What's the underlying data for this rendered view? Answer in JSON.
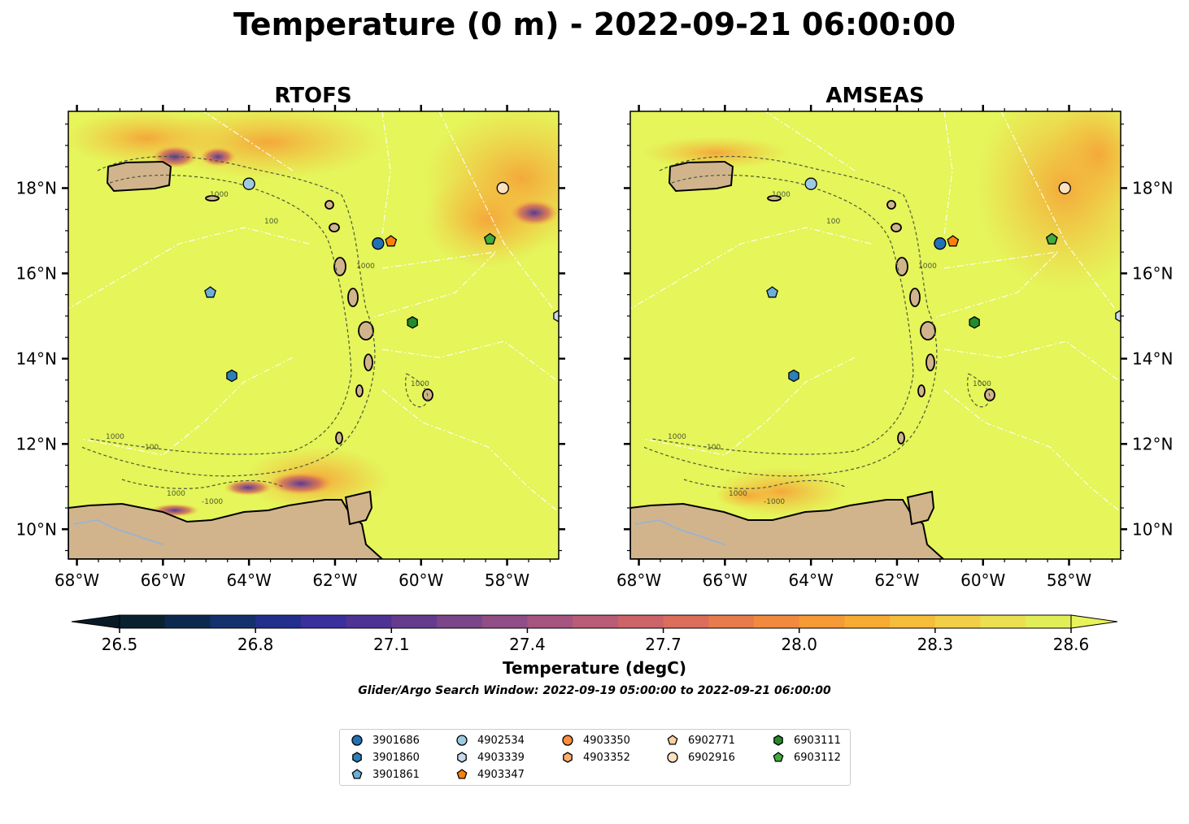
{
  "figure": {
    "title": "Temperature (0 m) - 2022-09-21 06:00:00",
    "search_window": "Glider/Argo Search Window: 2022-09-19 05:00:00 to 2022-09-21 06:00:00"
  },
  "chart_data": [
    {
      "type": "heatmap",
      "title": "RTOFS",
      "x_ticks": [
        "68°W",
        "66°W",
        "64°W",
        "62°W",
        "60°W",
        "58°W"
      ],
      "y_ticks": [
        "18°N",
        "16°N",
        "14°N",
        "12°N",
        "10°N"
      ],
      "xlim": [
        -68.2,
        -56.8
      ],
      "ylim": [
        9.3,
        19.8
      ],
      "y_tick_side": "left",
      "contour_labels": [
        "1000",
        "100",
        "1000",
        "100",
        "1000",
        "-1000",
        "1000",
        "1000"
      ],
      "markers": [
        {
          "id": "3901686",
          "lon": -61.0,
          "lat": 16.7
        },
        {
          "id": "4903347",
          "lon": -60.7,
          "lat": 16.75
        },
        {
          "id": "4902534",
          "lon": -64.0,
          "lat": 18.1
        },
        {
          "id": "6902916",
          "lon": -58.1,
          "lat": 18.0
        },
        {
          "id": "6903112",
          "lon": -58.4,
          "lat": 16.8
        },
        {
          "id": "3901861",
          "lon": -64.9,
          "lat": 15.55
        },
        {
          "id": "6903111",
          "lon": -60.2,
          "lat": 14.85
        },
        {
          "id": "3901860",
          "lon": -64.4,
          "lat": 13.6
        },
        {
          "id": "4903339",
          "lon": -56.8,
          "lat": 15.0
        }
      ]
    },
    {
      "type": "heatmap",
      "title": "AMSEAS",
      "x_ticks": [
        "68°W",
        "66°W",
        "64°W",
        "62°W",
        "60°W",
        "58°W"
      ],
      "y_ticks": [
        "18°N",
        "16°N",
        "14°N",
        "12°N",
        "10°N"
      ],
      "xlim": [
        -68.2,
        -56.8
      ],
      "ylim": [
        9.3,
        19.8
      ],
      "y_tick_side": "right",
      "contour_labels": [
        "1000",
        "100",
        "1000",
        "100",
        "1000",
        "-1000",
        "1000",
        "1000"
      ],
      "markers": [
        {
          "id": "3901686",
          "lon": -61.0,
          "lat": 16.7
        },
        {
          "id": "4903347",
          "lon": -60.7,
          "lat": 16.75
        },
        {
          "id": "4902534",
          "lon": -64.0,
          "lat": 18.1
        },
        {
          "id": "6902916",
          "lon": -58.1,
          "lat": 18.0
        },
        {
          "id": "6903112",
          "lon": -58.4,
          "lat": 16.8
        },
        {
          "id": "3901861",
          "lon": -64.9,
          "lat": 15.55
        },
        {
          "id": "6903111",
          "lon": -60.2,
          "lat": 14.85
        },
        {
          "id": "3901860",
          "lon": -64.4,
          "lat": 13.6
        },
        {
          "id": "4903339",
          "lon": -56.8,
          "lat": 15.0
        }
      ]
    }
  ],
  "colorbar": {
    "label": "Temperature (degC)",
    "min": 26.4,
    "max": 28.7,
    "extend": "both",
    "ticks": [
      "26.5",
      "26.8",
      "27.1",
      "27.4",
      "27.7",
      "28.0",
      "28.3",
      "28.6"
    ],
    "tick_values": [
      26.5,
      26.8,
      27.1,
      27.4,
      27.7,
      28.0,
      28.3,
      28.6
    ],
    "colors": [
      "#0a2130",
      "#0c2a4f",
      "#14316e",
      "#232f8c",
      "#3a2f9c",
      "#4f3394",
      "#653b8e",
      "#7b458a",
      "#914d86",
      "#a65580",
      "#b95c77",
      "#cb6369",
      "#dc6d5b",
      "#e87b4c",
      "#f18a3e",
      "#f59a35",
      "#f7ab32",
      "#f5bd3a",
      "#f1cf46",
      "#ebe150",
      "#e2ee58"
    ]
  },
  "legend": {
    "entries": [
      {
        "id": "3901686",
        "shape": "circle",
        "color": "#2171b5"
      },
      {
        "id": "3901860",
        "shape": "hexagon",
        "color": "#2c7fb8"
      },
      {
        "id": "3901861",
        "shape": "pentagon",
        "color": "#6baed6"
      },
      {
        "id": "4902534",
        "shape": "circle",
        "color": "#9ecae1"
      },
      {
        "id": "4903339",
        "shape": "hexagon",
        "color": "#c6dbef"
      },
      {
        "id": "4903347",
        "shape": "pentagon",
        "color": "#fd7f0e"
      },
      {
        "id": "4903350",
        "shape": "circle",
        "color": "#fd8d3c"
      },
      {
        "id": "4903352",
        "shape": "hexagon",
        "color": "#fdae6b"
      },
      {
        "id": "6902771",
        "shape": "pentagon",
        "color": "#fdd0a2"
      },
      {
        "id": "6902916",
        "shape": "circle",
        "color": "#fde0c0"
      },
      {
        "id": "6903111",
        "shape": "hexagon",
        "color": "#238b2a"
      },
      {
        "id": "6903112",
        "shape": "pentagon",
        "color": "#41ab3d"
      }
    ]
  },
  "colors": {
    "ocean": "#e5f55a",
    "land": "#d2b48c",
    "river": "#9db3cc",
    "eez": "#ffffff",
    "contour": "#4d5a3a"
  }
}
